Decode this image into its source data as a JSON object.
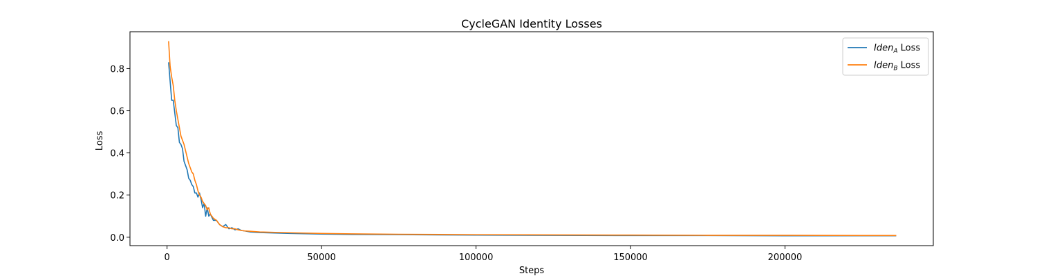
{
  "chart_data": {
    "type": "line",
    "title": "CycleGAN Identity Losses",
    "xlabel": "Steps",
    "ylabel": "Loss",
    "xlim": [
      -12000,
      248000
    ],
    "ylim": [
      -0.04,
      0.975
    ],
    "xticks": [
      0,
      50000,
      100000,
      150000,
      200000
    ],
    "xtick_labels": [
      "0",
      "50000",
      "100000",
      "150000",
      "200000"
    ],
    "yticks": [
      0.0,
      0.2,
      0.4,
      0.6,
      0.8
    ],
    "ytick_labels": [
      "0.0",
      "0.2",
      "0.4",
      "0.6",
      "0.8"
    ],
    "grid": false,
    "legend_position": "top-right",
    "series": [
      {
        "name": "Iden",
        "name_sub": "A",
        "name_suffix": " Loss",
        "color": "#1f77b4",
        "x": [
          500,
          1000,
          1500,
          2000,
          2500,
          3000,
          3500,
          4000,
          4500,
          5000,
          5500,
          6000,
          6500,
          7000,
          7500,
          8000,
          8500,
          9000,
          9500,
          10000,
          10500,
          11000,
          11500,
          12000,
          12500,
          13000,
          13500,
          14000,
          15000,
          16000,
          17000,
          18000,
          19000,
          20000,
          21000,
          22000,
          23000,
          24000,
          25000,
          27000,
          30000,
          35000,
          40000,
          50000,
          60000,
          75000,
          100000,
          125000,
          150000,
          175000,
          200000,
          225000,
          236000
        ],
        "values": [
          0.83,
          0.74,
          0.65,
          0.65,
          0.59,
          0.53,
          0.52,
          0.45,
          0.44,
          0.42,
          0.36,
          0.34,
          0.32,
          0.28,
          0.27,
          0.25,
          0.24,
          0.21,
          0.21,
          0.19,
          0.21,
          0.18,
          0.14,
          0.16,
          0.1,
          0.14,
          0.1,
          0.11,
          0.08,
          0.08,
          0.06,
          0.05,
          0.06,
          0.04,
          0.045,
          0.035,
          0.04,
          0.032,
          0.03,
          0.025,
          0.022,
          0.02,
          0.018,
          0.015,
          0.013,
          0.012,
          0.01,
          0.009,
          0.008,
          0.008,
          0.007,
          0.007,
          0.007
        ]
      },
      {
        "name": "Iden",
        "name_sub": "B",
        "name_suffix": " Loss",
        "color": "#ff7f0e",
        "x": [
          500,
          1000,
          1500,
          2000,
          2500,
          3000,
          3500,
          4000,
          4500,
          5000,
          5500,
          6000,
          6500,
          7000,
          7500,
          8000,
          8500,
          9000,
          9500,
          10000,
          10500,
          11000,
          11500,
          12000,
          12500,
          13000,
          13500,
          14000,
          15000,
          16000,
          17000,
          18000,
          19000,
          20000,
          21000,
          22000,
          23000,
          24000,
          25000,
          27000,
          30000,
          35000,
          40000,
          50000,
          60000,
          75000,
          100000,
          125000,
          150000,
          175000,
          200000,
          225000,
          236000
        ],
        "values": [
          0.93,
          0.81,
          0.76,
          0.72,
          0.65,
          0.6,
          0.56,
          0.52,
          0.48,
          0.46,
          0.44,
          0.41,
          0.38,
          0.35,
          0.33,
          0.31,
          0.3,
          0.27,
          0.25,
          0.22,
          0.2,
          0.19,
          0.17,
          0.16,
          0.15,
          0.13,
          0.14,
          0.11,
          0.09,
          0.08,
          0.06,
          0.05,
          0.045,
          0.045,
          0.04,
          0.04,
          0.035,
          0.032,
          0.03,
          0.028,
          0.025,
          0.023,
          0.021,
          0.018,
          0.016,
          0.014,
          0.012,
          0.011,
          0.01,
          0.009,
          0.009,
          0.008,
          0.008
        ]
      }
    ]
  }
}
